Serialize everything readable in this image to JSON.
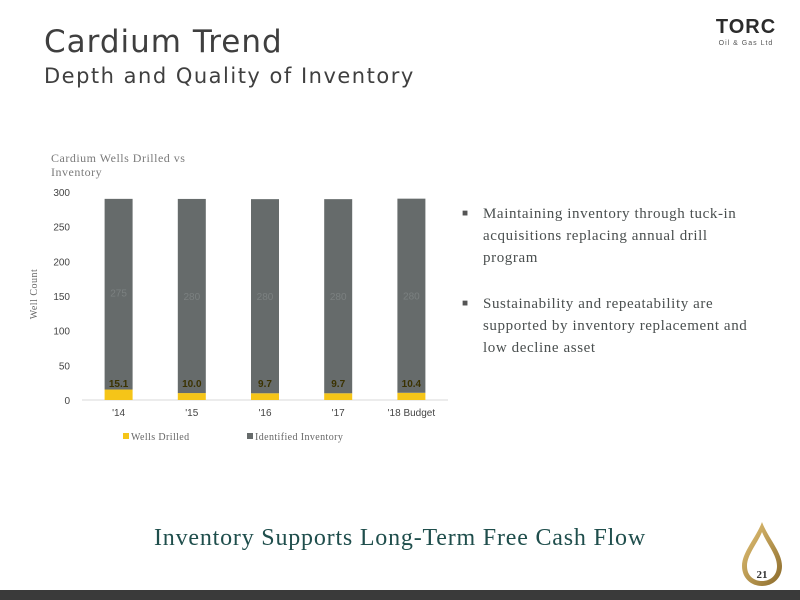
{
  "header": {
    "title": "Cardium Trend",
    "subtitle": "Depth and Quality of Inventory"
  },
  "logo": {
    "name": "TORC",
    "sub": "Oil & Gas Ltd"
  },
  "bullets": [
    "Maintaining inventory through tuck-in acquisitions replacing annual drill program",
    "Sustainability and repeatability are supported by inventory replacement and low decline asset"
  ],
  "tagline": "Inventory Supports Long-Term Free Cash Flow",
  "page_number": "21",
  "colors": {
    "wells_drilled": "#f5c518",
    "identified_inventory": "#666b6b",
    "tagline": "#1f4e4c"
  },
  "chart_data": {
    "type": "bar",
    "stacked": true,
    "title": "Cardium Wells Drilled vs Inventory",
    "ylabel": "Well Count",
    "xlabel": "",
    "ylim": [
      0,
      300
    ],
    "yticks": [
      0,
      50,
      100,
      150,
      200,
      250,
      300
    ],
    "categories": [
      "'14",
      "'15",
      "'16",
      "'17",
      "'18 Budget"
    ],
    "series": [
      {
        "name": "Wells Drilled",
        "values": [
          15.1,
          10.0,
          9.7,
          9.7,
          10.4
        ],
        "labels": [
          "15.1",
          "10.0",
          "9.7",
          "9.7",
          "10.4"
        ]
      },
      {
        "name": "Identified Inventory",
        "values": [
          275,
          280,
          280,
          280,
          280
        ],
        "labels": [
          "275",
          "280",
          "280",
          "280",
          "280"
        ]
      }
    ],
    "legend": "bottom",
    "grid": false
  }
}
